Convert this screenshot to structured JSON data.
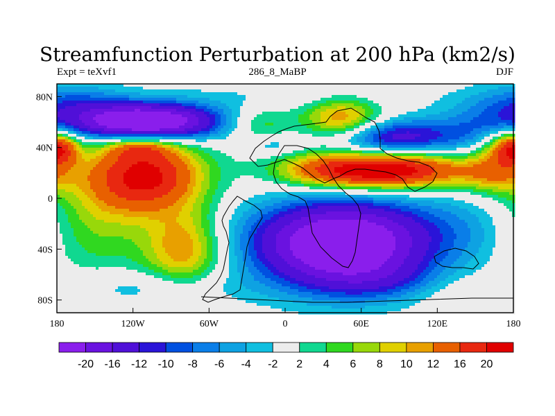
{
  "chart_data": {
    "type": "heatmap",
    "title": "Streamfunction Perturbation at 200 hPa (km2/s)",
    "subtitle_left": "Expt = teXvf1",
    "subtitle_center": "286_8_MaBP",
    "subtitle_right": "DJF",
    "xlim": [
      -180,
      180
    ],
    "ylim": [
      -90,
      90
    ],
    "x_ticks": [
      {
        "value": -180,
        "label": "180"
      },
      {
        "value": -120,
        "label": "120W"
      },
      {
        "value": -60,
        "label": "60W"
      },
      {
        "value": 0,
        "label": "0"
      },
      {
        "value": 60,
        "label": "60E"
      },
      {
        "value": 120,
        "label": "120E"
      },
      {
        "value": 180,
        "label": "180"
      }
    ],
    "y_ticks": [
      {
        "value": 80,
        "label": "80N"
      },
      {
        "value": 40,
        "label": "40N"
      },
      {
        "value": 0,
        "label": "0"
      },
      {
        "value": -40,
        "label": "40S"
      },
      {
        "value": -80,
        "label": "80S"
      }
    ],
    "colorbar": {
      "levels": [
        "-20",
        "-16",
        "-12",
        "-10",
        "-8",
        "-6",
        "-4",
        "-2",
        "2",
        "4",
        "6",
        "8",
        "10",
        "12",
        "16",
        "20"
      ],
      "colors": [
        "#8a1eec",
        "#6a12e0",
        "#5010d8",
        "#2a14d8",
        "#0050e0",
        "#0a7ee8",
        "#0ea2e2",
        "#10bfe0",
        "#ececec",
        "#10d890",
        "#30d820",
        "#98d80a",
        "#e0d000",
        "#e8a000",
        "#e86000",
        "#e82810",
        "#e00000"
      ]
    },
    "features": [
      {
        "lon": -110,
        "lat": 18,
        "amp": 21,
        "slon": 32,
        "slat": 20
      },
      {
        "lon": -80,
        "lat": -40,
        "amp": 12,
        "slon": 22,
        "slat": 22
      },
      {
        "lon": -150,
        "lat": -20,
        "amp": 6,
        "slon": 30,
        "slat": 30
      },
      {
        "lon": -105,
        "lat": -70,
        "amp": -4,
        "slon": 50,
        "slat": 10
      },
      {
        "lon": -110,
        "lat": 60,
        "amp": -22,
        "slon": 40,
        "slat": 10
      },
      {
        "lon": -110,
        "lat": 60,
        "amp": -8,
        "slon": 40,
        "slat": 10
      },
      {
        "lon": -170,
        "lat": 75,
        "amp": -7,
        "slon": 30,
        "slat": 12
      },
      {
        "lon": -115,
        "lat": 40,
        "amp": 8,
        "slon": 18,
        "slat": 6
      },
      {
        "lon": 40,
        "lat": -40,
        "amp": -20,
        "slon": 45,
        "slat": 24
      },
      {
        "lon": 60,
        "lat": -28,
        "amp": -10,
        "slon": 60,
        "slat": 20
      },
      {
        "lon": 90,
        "lat": -65,
        "amp": -6,
        "slon": 40,
        "slat": 12
      },
      {
        "lon": 150,
        "lat": -20,
        "amp": -2,
        "slon": 25,
        "slat": 25
      },
      {
        "lon": 85,
        "lat": 22,
        "amp": 23,
        "slon": 40,
        "slat": 10
      },
      {
        "lon": 30,
        "lat": 22,
        "amp": 10,
        "slon": 30,
        "slat": 10
      },
      {
        "lon": 165,
        "lat": 20,
        "amp": 10,
        "slon": 20,
        "slat": 12
      },
      {
        "lon": 175,
        "lat": 40,
        "amp": 11,
        "slon": 14,
        "slat": 9
      },
      {
        "lon": -178,
        "lat": 40,
        "amp": 10,
        "slon": 10,
        "slat": 9
      },
      {
        "lon": 45,
        "lat": 62,
        "amp": 13,
        "slon": 22,
        "slat": 12
      },
      {
        "lon": 85,
        "lat": 48,
        "amp": -14,
        "slon": 35,
        "slat": 10
      },
      {
        "lon": 150,
        "lat": 55,
        "amp": -5,
        "slon": 25,
        "slat": 15
      },
      {
        "lon": 0,
        "lat": 80,
        "amp": -2,
        "slon": 80,
        "slat": 8
      },
      {
        "lon": -20,
        "lat": 58,
        "amp": 6,
        "slon": 18,
        "slat": 10
      },
      {
        "lon": 130,
        "lat": -70,
        "amp": 4,
        "slon": 30,
        "slat": 12
      },
      {
        "lon": -10,
        "lat": 42,
        "amp": -4,
        "slon": 15,
        "slat": 6
      }
    ]
  }
}
